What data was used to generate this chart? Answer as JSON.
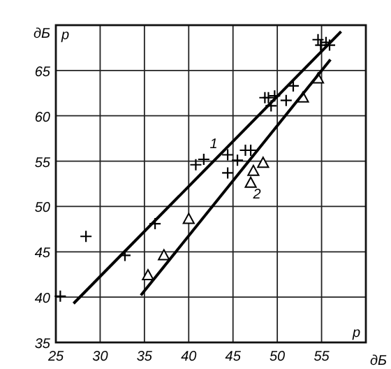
{
  "chart_data": {
    "type": "scatter",
    "xlabel": "дБ",
    "ylabel": "дБ",
    "xlim": [
      25,
      60
    ],
    "ylim": [
      35,
      70
    ],
    "xticks": [
      25,
      30,
      35,
      40,
      45,
      50,
      55
    ],
    "yticks": [
      35,
      40,
      45,
      50,
      55,
      60,
      65
    ],
    "grid": true,
    "series": [
      {
        "marker": "cross",
        "color": "#000000",
        "x": [
          25.5,
          28.4,
          32.8,
          36.2,
          40.8,
          41.7,
          44.4,
          44.4,
          45.5,
          46.4,
          47.0,
          48.6,
          49.0,
          49.7,
          49.3,
          51.0,
          51.8,
          54.6,
          54.9,
          55.5,
          55.9
        ],
        "values": [
          40.1,
          46.7,
          44.6,
          48.1,
          54.6,
          55.2,
          55.7,
          53.7,
          55.1,
          56.2,
          56.2,
          62.0,
          62.0,
          62.2,
          61.1,
          61.7,
          63.3,
          68.4,
          67.8,
          68.1,
          67.8
        ]
      },
      {
        "marker": "triangle",
        "color": "#000000",
        "x": [
          35.4,
          37.2,
          40.0,
          47.0,
          47.3,
          48.4,
          52.9,
          54.6
        ],
        "values": [
          42.4,
          44.6,
          48.6,
          52.6,
          53.9,
          54.8,
          62.0,
          64.1
        ]
      },
      {
        "type": "line",
        "marker": "none",
        "color": "#000000",
        "x": [
          27.0,
          57.2
        ],
        "values": [
          39.3,
          69.3
        ]
      },
      {
        "type": "line",
        "marker": "none",
        "color": "#000000",
        "x": [
          34.6,
          56.0
        ],
        "values": [
          40.2,
          66.2
        ]
      }
    ],
    "annotations": [
      "p",
      "p",
      "1",
      "2"
    ]
  }
}
